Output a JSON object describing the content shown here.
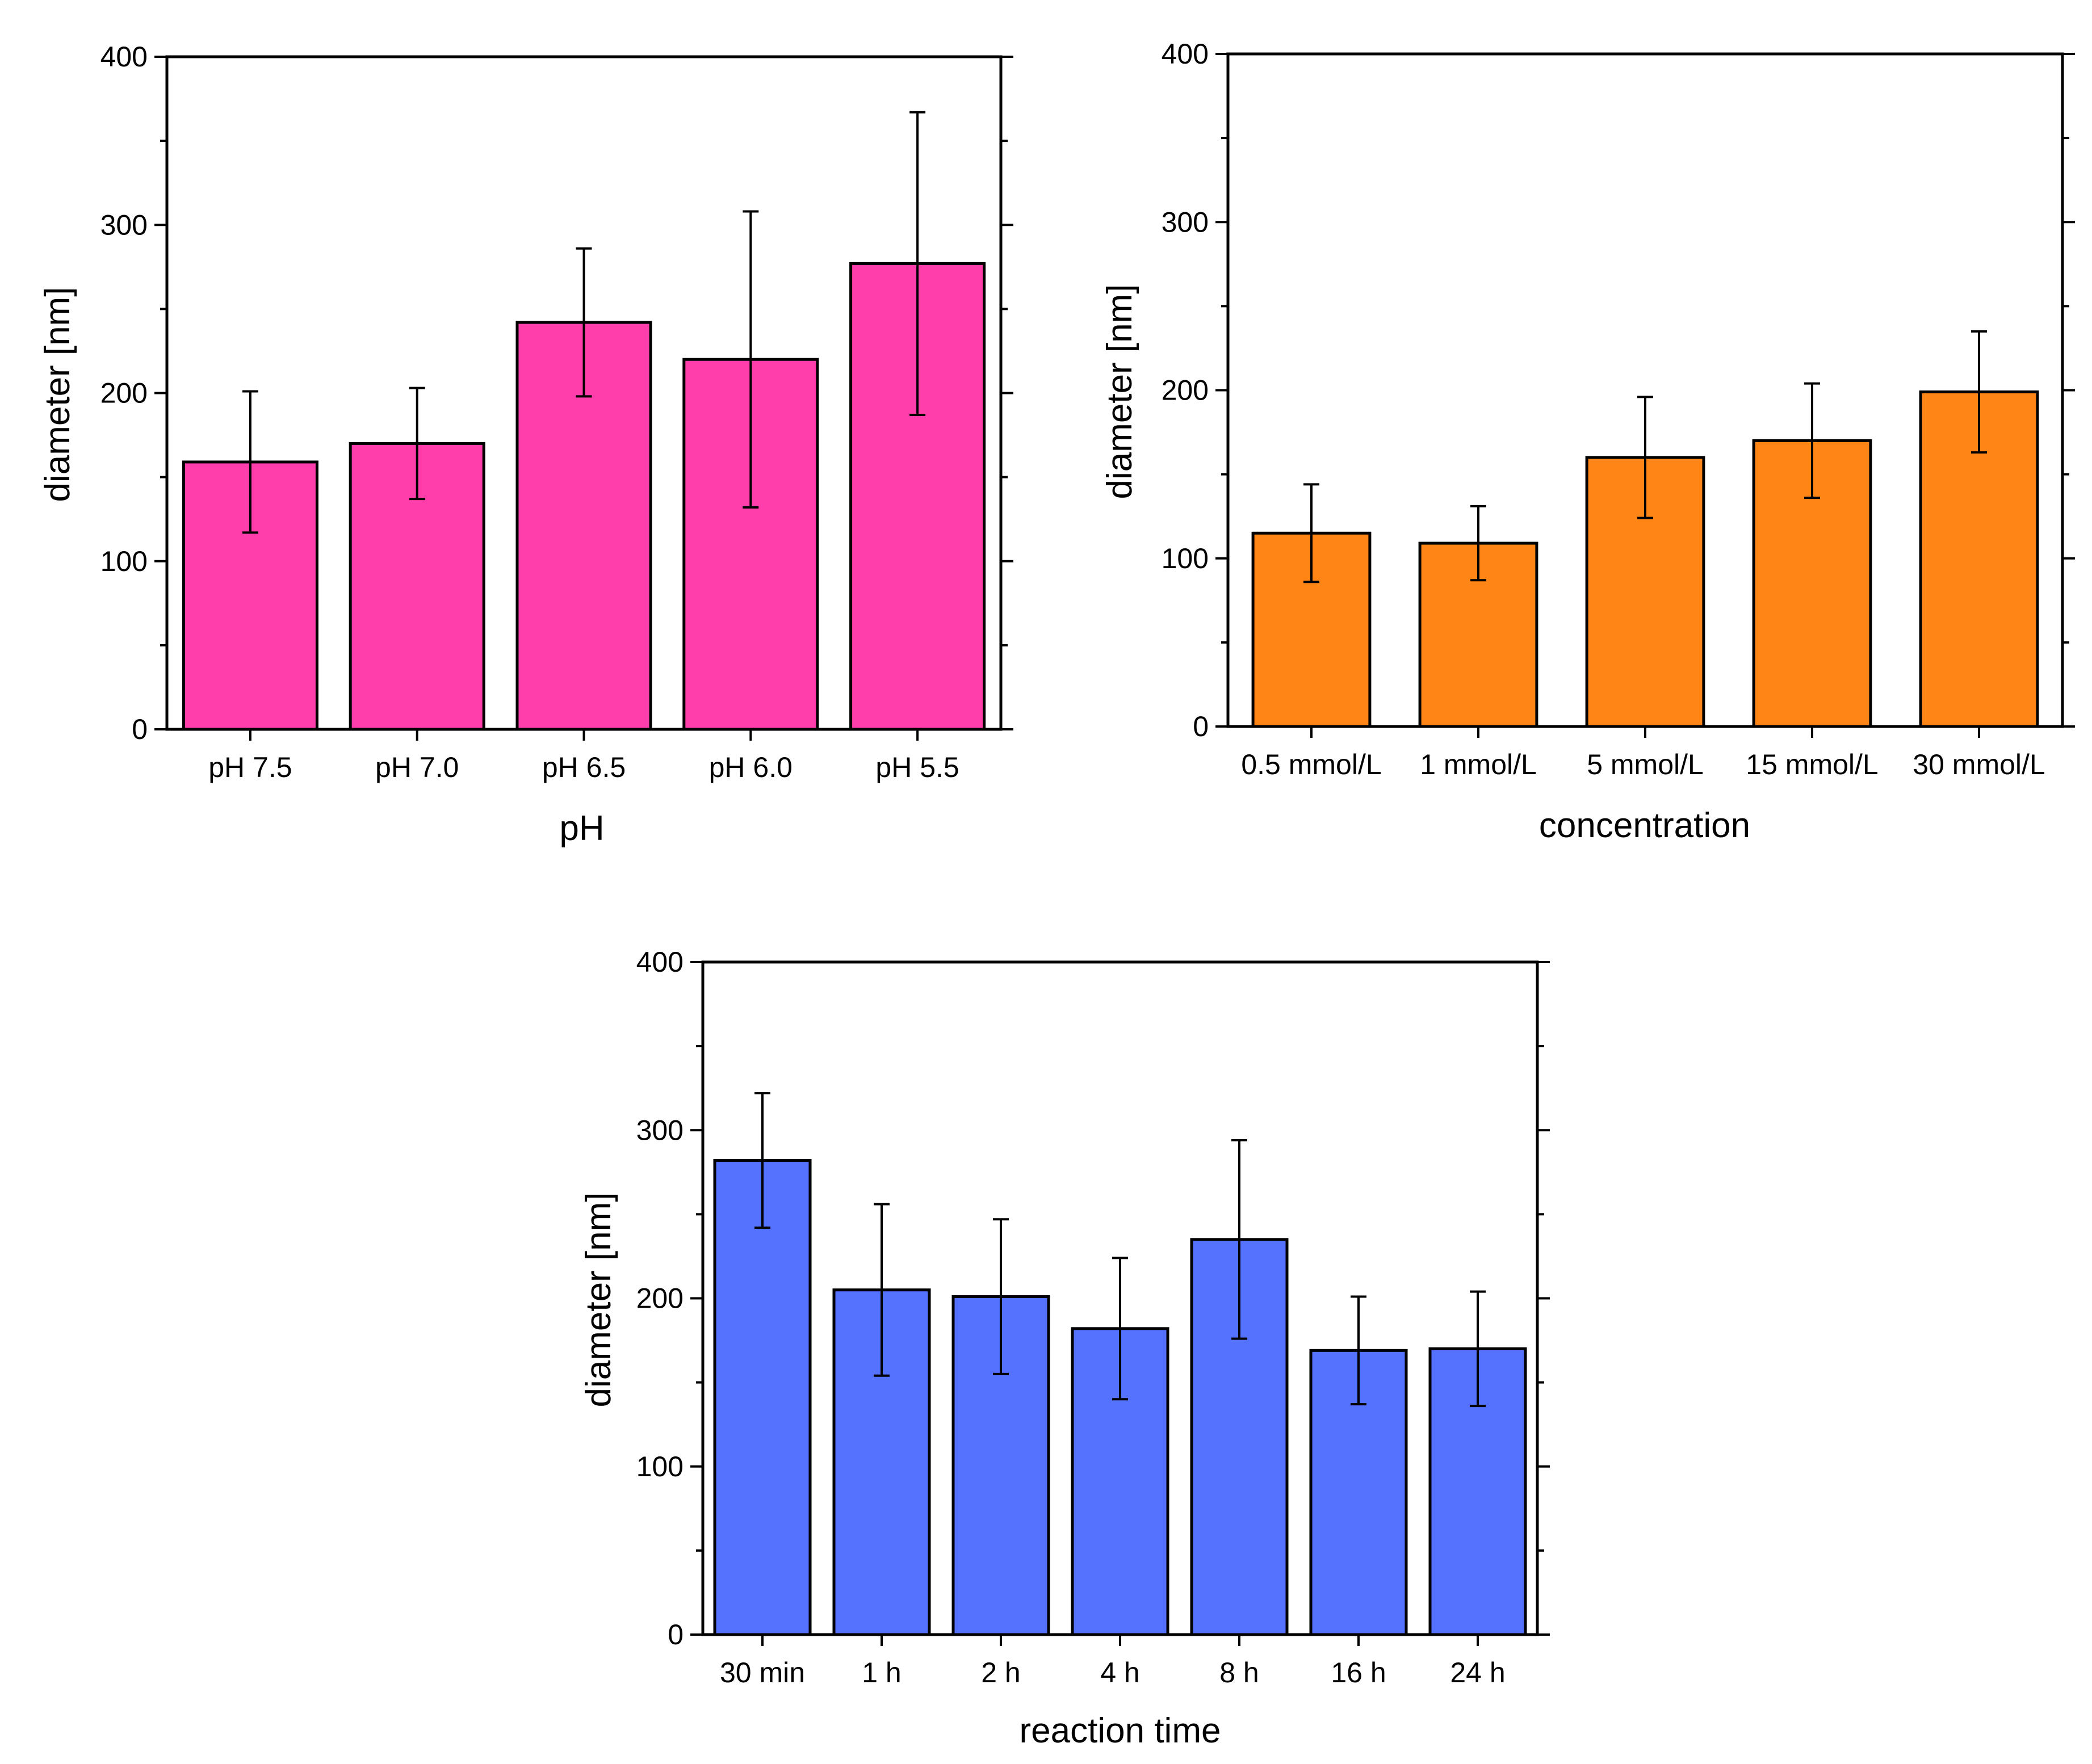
{
  "chart_data": [
    {
      "id": "ph",
      "type": "bar",
      "title": "",
      "xlabel": "pH",
      "ylabel": "diameter [nm]",
      "ylim": [
        0,
        400
      ],
      "yticks": [
        0,
        100,
        200,
        300,
        400
      ],
      "bar_color": "#FF3EAC",
      "grid": false,
      "categories": [
        "pH 7.5",
        "pH 7.0",
        "pH 6.5",
        "pH 6.0",
        "pH 5.5"
      ],
      "values": [
        159,
        170,
        242,
        220,
        277
      ],
      "errors": [
        42,
        33,
        44,
        88,
        90
      ]
    },
    {
      "id": "concentration",
      "type": "bar",
      "title": "",
      "xlabel": "concentration",
      "ylabel": "diameter [nm]",
      "ylim": [
        0,
        400
      ],
      "yticks": [
        0,
        100,
        200,
        300,
        400
      ],
      "bar_color": "#FF8517",
      "grid": false,
      "categories": [
        "0.5 mmol/L",
        "1 mmol/L",
        "5 mmol/L",
        "15 mmol/L",
        "30 mmol/L"
      ],
      "values": [
        115,
        109,
        160,
        170,
        199
      ],
      "errors": [
        29,
        22,
        36,
        34,
        36
      ]
    },
    {
      "id": "reaction-time",
      "type": "bar",
      "title": "",
      "xlabel": "reaction time",
      "ylabel": "diameter [nm]",
      "ylim": [
        0,
        400
      ],
      "yticks": [
        0,
        100,
        200,
        300,
        400
      ],
      "bar_color": "#5572FF",
      "grid": false,
      "categories": [
        "30 min",
        "1 h",
        "2 h",
        "4 h",
        "8 h",
        "16 h",
        "24 h"
      ],
      "values": [
        282,
        205,
        201,
        182,
        235,
        169,
        170
      ],
      "errors": [
        40,
        51,
        46,
        42,
        59,
        32,
        34
      ]
    }
  ]
}
